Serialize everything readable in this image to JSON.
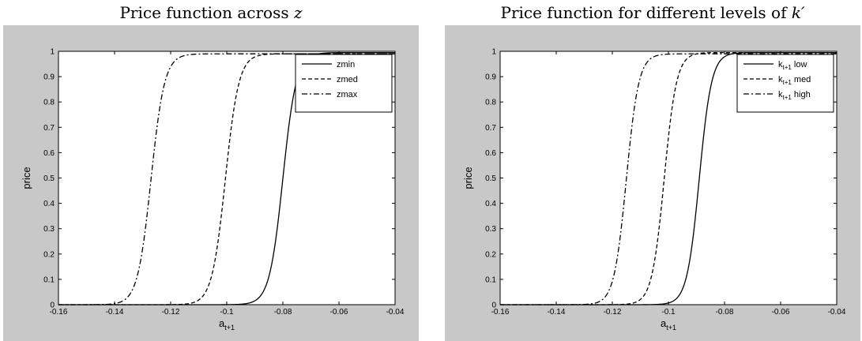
{
  "chart_data": [
    {
      "type": "line",
      "title": "Price function across",
      "title_math": "z",
      "xlabel": "a",
      "xlabel_sub": "t+1",
      "ylabel": "price",
      "xlim": [
        -0.16,
        -0.04
      ],
      "ylim": [
        0,
        1
      ],
      "xticks": [
        -0.16,
        -0.14,
        -0.12,
        -0.1,
        -0.08,
        -0.06,
        -0.04
      ],
      "xtick_labels": [
        "-0.16",
        "-0.14",
        "-0.12",
        "-0.1",
        "-0.08",
        "-0.06",
        "-0.04"
      ],
      "yticks": [
        0,
        0.1,
        0.2,
        0.3,
        0.4,
        0.5,
        0.6,
        0.7,
        0.8,
        0.9,
        1
      ],
      "ytick_labels": [
        "0",
        "0.1",
        "0.2",
        "0.3",
        "0.4",
        "0.5",
        "0.6",
        "0.7",
        "0.8",
        "0.9",
        "1"
      ],
      "grid": false,
      "legend_position": "top-right",
      "series": [
        {
          "name": "zmin",
          "style": "solid",
          "center": -0.08,
          "scale": 0.0024,
          "plateau": 0.995
        },
        {
          "name": "zmed",
          "style": "dashed",
          "center": -0.1005,
          "scale": 0.0024,
          "plateau": 0.99
        },
        {
          "name": "zmax",
          "style": "dashdot",
          "center": -0.127,
          "scale": 0.0024,
          "plateau": 0.99
        }
      ]
    },
    {
      "type": "line",
      "title": "Price function for different levels of",
      "title_math": "k′",
      "xlabel": "a",
      "xlabel_sub": "t+1",
      "ylabel": "price",
      "xlim": [
        -0.16,
        -0.04
      ],
      "ylim": [
        0,
        1
      ],
      "xticks": [
        -0.16,
        -0.14,
        -0.12,
        -0.1,
        -0.08,
        -0.06,
        -0.04
      ],
      "xtick_labels": [
        "-0.16",
        "-0.14",
        "-0.12",
        "-0.1",
        "-0.08",
        "-0.06",
        "-0.04"
      ],
      "yticks": [
        0,
        0.1,
        0.2,
        0.3,
        0.4,
        0.5,
        0.6,
        0.7,
        0.8,
        0.9,
        1
      ],
      "ytick_labels": [
        "0",
        "0.1",
        "0.2",
        "0.3",
        "0.4",
        "0.5",
        "0.6",
        "0.7",
        "0.8",
        "0.9",
        "1"
      ],
      "grid": false,
      "legend_position": "top-right",
      "series": [
        {
          "name": "k",
          "name_sub": "t+1",
          "name_suffix": " low",
          "style": "solid",
          "center": -0.089,
          "scale": 0.0022,
          "plateau": 0.995
        },
        {
          "name": "k",
          "name_sub": "t+1",
          "name_suffix": " med",
          "style": "dashed",
          "center": -0.1015,
          "scale": 0.0022,
          "plateau": 0.995
        },
        {
          "name": "k",
          "name_sub": "t+1",
          "name_suffix": " high",
          "style": "dashdot",
          "center": -0.115,
          "scale": 0.0022,
          "plateau": 0.99
        }
      ]
    }
  ]
}
